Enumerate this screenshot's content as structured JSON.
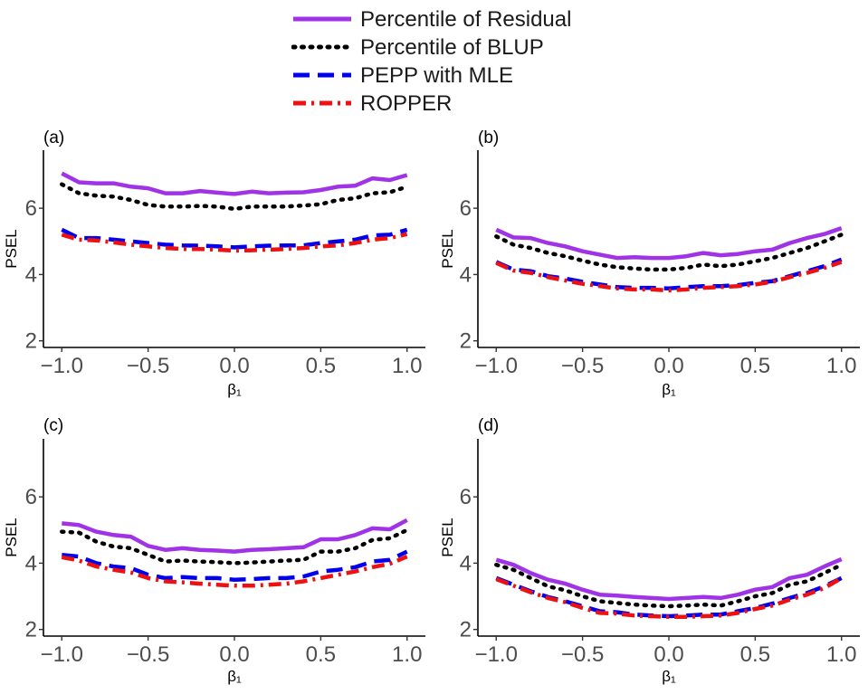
{
  "legend": {
    "items": [
      {
        "label": "Percentile of Residual",
        "color": "#a033e6",
        "style": "solid"
      },
      {
        "label": "Percentile of BLUP",
        "color": "#000000",
        "style": "dotted"
      },
      {
        "label": "PEPP with MLE",
        "color": "#0000ee",
        "style": "dashed"
      },
      {
        "label": "ROPPER",
        "color": "#ee1111",
        "style": "dashdot"
      }
    ]
  },
  "chart_data": [
    {
      "type": "line",
      "panel": "(a)",
      "xlabel": "β₁",
      "ylabel": "PSEL",
      "xlim": [
        -1.0,
        1.0
      ],
      "ylim": [
        1.8,
        7.75
      ],
      "xticks": [
        "−1.0",
        "−0.5",
        "0.0",
        "0.5",
        "1.0"
      ],
      "xtick_values": [
        -1.0,
        -0.5,
        0.0,
        0.5,
        1.0
      ],
      "yticks": [
        "2",
        "4",
        "6"
      ],
      "ytick_values": [
        2,
        4,
        6
      ],
      "x": [
        -1.0,
        -0.9,
        -0.8,
        -0.7,
        -0.6,
        -0.5,
        -0.4,
        -0.3,
        -0.2,
        -0.1,
        0.0,
        0.1,
        0.2,
        0.3,
        0.4,
        0.5,
        0.6,
        0.7,
        0.8,
        0.9,
        1.0
      ],
      "series": [
        {
          "name": "Percentile of Residual",
          "values": [
            7.05,
            6.78,
            6.75,
            6.75,
            6.65,
            6.6,
            6.45,
            6.45,
            6.52,
            6.47,
            6.43,
            6.5,
            6.45,
            6.47,
            6.48,
            6.55,
            6.65,
            6.68,
            6.9,
            6.85,
            7.0
          ]
        },
        {
          "name": "Percentile of BLUP",
          "values": [
            6.72,
            6.45,
            6.38,
            6.35,
            6.25,
            6.1,
            6.05,
            6.05,
            6.07,
            6.05,
            5.98,
            6.05,
            6.05,
            6.05,
            6.08,
            6.12,
            6.25,
            6.3,
            6.45,
            6.48,
            6.65
          ]
        },
        {
          "name": "PEPP with MLE",
          "values": [
            5.35,
            5.1,
            5.1,
            5.05,
            5.0,
            4.95,
            4.9,
            4.88,
            4.87,
            4.85,
            4.82,
            4.85,
            4.87,
            4.88,
            4.88,
            4.95,
            5.0,
            5.05,
            5.18,
            5.2,
            5.35
          ]
        },
        {
          "name": "ROPPER",
          "values": [
            5.2,
            5.05,
            5.03,
            4.97,
            4.9,
            4.85,
            4.8,
            4.77,
            4.77,
            4.75,
            4.72,
            4.73,
            4.75,
            4.77,
            4.8,
            4.85,
            4.88,
            4.95,
            5.05,
            5.1,
            5.22
          ]
        }
      ]
    },
    {
      "type": "line",
      "panel": "(b)",
      "xlabel": "β₁",
      "ylabel": "PSEL",
      "xlim": [
        -1.0,
        1.0
      ],
      "ylim": [
        1.8,
        7.75
      ],
      "xticks": [
        "−1.0",
        "−0.5",
        "0.0",
        "0.5",
        "1.0"
      ],
      "xtick_values": [
        -1.0,
        -0.5,
        0.0,
        0.5,
        1.0
      ],
      "yticks": [
        "2",
        "4",
        "6"
      ],
      "ytick_values": [
        2,
        4,
        6
      ],
      "x": [
        -1.0,
        -0.9,
        -0.8,
        -0.7,
        -0.6,
        -0.5,
        -0.4,
        -0.3,
        -0.2,
        -0.1,
        0.0,
        0.1,
        0.2,
        0.3,
        0.4,
        0.5,
        0.6,
        0.7,
        0.8,
        0.9,
        1.0
      ],
      "series": [
        {
          "name": "Percentile of Residual",
          "values": [
            5.35,
            5.12,
            5.1,
            4.95,
            4.85,
            4.7,
            4.6,
            4.5,
            4.52,
            4.5,
            4.5,
            4.55,
            4.65,
            4.58,
            4.62,
            4.7,
            4.75,
            4.95,
            5.1,
            5.22,
            5.4
          ]
        },
        {
          "name": "Percentile of BLUP",
          "values": [
            5.15,
            4.9,
            4.8,
            4.65,
            4.55,
            4.42,
            4.3,
            4.22,
            4.18,
            4.15,
            4.15,
            4.2,
            4.3,
            4.25,
            4.3,
            4.4,
            4.5,
            4.65,
            4.8,
            5.0,
            5.2
          ]
        },
        {
          "name": "PEPP with MLE",
          "values": [
            4.38,
            4.15,
            4.1,
            3.95,
            3.88,
            3.78,
            3.7,
            3.62,
            3.6,
            3.6,
            3.58,
            3.62,
            3.65,
            3.65,
            3.68,
            3.75,
            3.8,
            3.95,
            4.1,
            4.25,
            4.45
          ]
        },
        {
          "name": "ROPPER",
          "values": [
            4.35,
            4.12,
            4.05,
            3.92,
            3.82,
            3.72,
            3.65,
            3.58,
            3.55,
            3.55,
            3.52,
            3.55,
            3.6,
            3.62,
            3.65,
            3.7,
            3.78,
            3.92,
            4.05,
            4.2,
            4.38
          ]
        }
      ]
    },
    {
      "type": "line",
      "panel": "(c)",
      "xlabel": "β₁",
      "ylabel": "PSEL",
      "xlim": [
        -1.0,
        1.0
      ],
      "ylim": [
        1.8,
        7.75
      ],
      "xticks": [
        "−1.0",
        "−0.5",
        "0.0",
        "0.5",
        "1.0"
      ],
      "xtick_values": [
        -1.0,
        -0.5,
        0.0,
        0.5,
        1.0
      ],
      "yticks": [
        "2",
        "4",
        "6"
      ],
      "ytick_values": [
        2,
        4,
        6
      ],
      "x": [
        -1.0,
        -0.9,
        -0.8,
        -0.7,
        -0.6,
        -0.5,
        -0.4,
        -0.3,
        -0.2,
        -0.1,
        0.0,
        0.1,
        0.2,
        0.3,
        0.4,
        0.5,
        0.6,
        0.7,
        0.8,
        0.9,
        1.0
      ],
      "series": [
        {
          "name": "Percentile of Residual",
          "values": [
            5.2,
            5.15,
            4.95,
            4.85,
            4.8,
            4.52,
            4.4,
            4.45,
            4.4,
            4.38,
            4.35,
            4.4,
            4.42,
            4.45,
            4.48,
            4.72,
            4.72,
            4.85,
            5.05,
            5.02,
            5.3
          ]
        },
        {
          "name": "Percentile of BLUP",
          "values": [
            4.95,
            4.92,
            4.65,
            4.5,
            4.45,
            4.25,
            4.05,
            4.08,
            4.05,
            4.03,
            4.0,
            4.02,
            4.05,
            4.08,
            4.1,
            4.35,
            4.35,
            4.45,
            4.7,
            4.75,
            5.0
          ]
        },
        {
          "name": "PEPP with MLE",
          "values": [
            4.25,
            4.2,
            4.0,
            3.9,
            3.85,
            3.65,
            3.55,
            3.58,
            3.55,
            3.55,
            3.5,
            3.52,
            3.55,
            3.55,
            3.6,
            3.75,
            3.8,
            3.88,
            4.05,
            4.1,
            4.35
          ]
        },
        {
          "name": "ROPPER",
          "values": [
            4.18,
            4.08,
            3.9,
            3.8,
            3.72,
            3.55,
            3.45,
            3.42,
            3.38,
            3.35,
            3.32,
            3.32,
            3.35,
            3.38,
            3.45,
            3.55,
            3.65,
            3.75,
            3.88,
            3.98,
            4.2
          ]
        }
      ]
    },
    {
      "type": "line",
      "panel": "(d)",
      "xlabel": "β₁",
      "ylabel": "PSEL",
      "xlim": [
        -1.0,
        1.0
      ],
      "ylim": [
        1.8,
        7.75
      ],
      "xticks": [
        "−1.0",
        "−0.5",
        "0.0",
        "0.5",
        "1.0"
      ],
      "xtick_values": [
        -1.0,
        -0.5,
        0.0,
        0.5,
        1.0
      ],
      "yticks": [
        "2",
        "4",
        "6"
      ],
      "ytick_values": [
        2,
        4,
        6
      ],
      "x": [
        -1.0,
        -0.9,
        -0.8,
        -0.7,
        -0.6,
        -0.5,
        -0.4,
        -0.3,
        -0.2,
        -0.1,
        0.0,
        0.1,
        0.2,
        0.3,
        0.4,
        0.5,
        0.6,
        0.7,
        0.8,
        0.9,
        1.0
      ],
      "series": [
        {
          "name": "Percentile of Residual",
          "values": [
            4.1,
            3.95,
            3.7,
            3.5,
            3.38,
            3.2,
            3.05,
            3.02,
            2.98,
            2.95,
            2.92,
            2.95,
            2.98,
            2.95,
            3.05,
            3.2,
            3.28,
            3.55,
            3.65,
            3.9,
            4.12
          ]
        },
        {
          "name": "Percentile of BLUP",
          "values": [
            3.95,
            3.8,
            3.55,
            3.3,
            3.18,
            3.0,
            2.85,
            2.8,
            2.75,
            2.72,
            2.7,
            2.72,
            2.75,
            2.72,
            2.85,
            3.0,
            3.1,
            3.35,
            3.45,
            3.7,
            3.95
          ]
        },
        {
          "name": "PEPP with MLE",
          "values": [
            3.55,
            3.35,
            3.15,
            2.98,
            2.85,
            2.7,
            2.55,
            2.52,
            2.45,
            2.42,
            2.4,
            2.42,
            2.45,
            2.45,
            2.55,
            2.65,
            2.78,
            2.95,
            3.1,
            3.3,
            3.55
          ]
        },
        {
          "name": "ROPPER",
          "values": [
            3.52,
            3.32,
            3.12,
            2.95,
            2.82,
            2.65,
            2.5,
            2.48,
            2.42,
            2.4,
            2.38,
            2.38,
            2.4,
            2.42,
            2.5,
            2.62,
            2.72,
            2.9,
            3.05,
            3.25,
            3.55
          ]
        }
      ]
    }
  ]
}
